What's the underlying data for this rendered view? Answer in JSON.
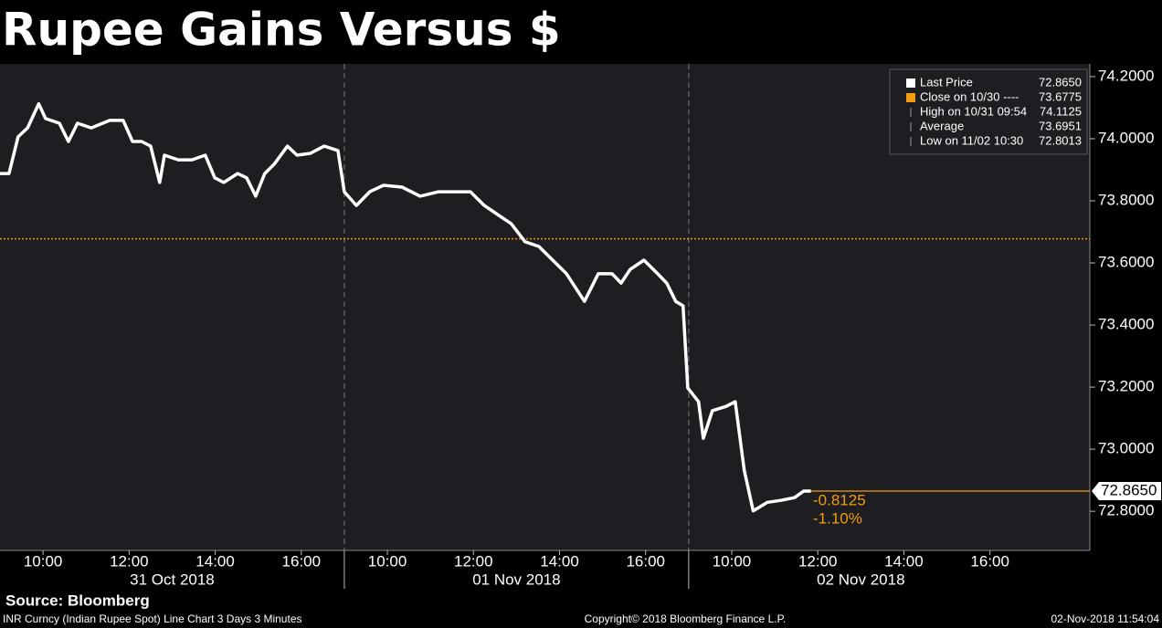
{
  "chart_data": {
    "type": "line",
    "title": "Rupee Gains Versus $",
    "source": "Source: Bloomberg",
    "footer_left": "INR Curncy (Indian Rupee Spot) Line Chart 3 Days 3 Minutes",
    "footer_center": "Copyright© 2018 Bloomberg Finance L.P.",
    "footer_right": "02-Nov-2018 11:54:04",
    "x": [
      0,
      0.21,
      0.42,
      0.64,
      0.9,
      1.06,
      1.38,
      1.59,
      1.8,
      2.12,
      2.55,
      2.86,
      3.08,
      3.29,
      3.5,
      3.71,
      3.82,
      4.14,
      4.46,
      4.77,
      4.99,
      5.2,
      5.52,
      5.73,
      5.94,
      6.15,
      6.37,
      6.68,
      6.9,
      7.21,
      7.53,
      7.85,
      8.0,
      8.28,
      8.59,
      8.91,
      9.34,
      9.76,
      10.19,
      10.61,
      10.93,
      11.25,
      11.56,
      11.88,
      12.2,
      12.52,
      12.84,
      13.16,
      13.58,
      13.9,
      14.22,
      14.43,
      14.64,
      14.96,
      15.28,
      15.49,
      15.7,
      15.87,
      15.98,
      16.23,
      16.34,
      16.55,
      16.87,
      17.08,
      17.29,
      17.5,
      17.83,
      18.14,
      18.46,
      18.67,
      18.84
    ],
    "series": [
      {
        "name": "Last Price",
        "color": "#ffffff",
        "values": [
          73.888,
          73.888,
          74.006,
          74.035,
          74.1125,
          74.065,
          74.05,
          73.991,
          74.05,
          74.035,
          74.059,
          74.059,
          73.991,
          73.991,
          73.976,
          73.859,
          73.947,
          73.932,
          73.932,
          73.947,
          73.874,
          73.859,
          73.888,
          73.874,
          73.815,
          73.888,
          73.918,
          73.976,
          73.947,
          73.953,
          73.976,
          73.962,
          73.829,
          73.785,
          73.829,
          73.85,
          73.844,
          73.815,
          73.829,
          73.829,
          73.829,
          73.785,
          73.756,
          73.726,
          73.668,
          73.653,
          73.609,
          73.565,
          73.476,
          73.565,
          73.565,
          73.535,
          73.579,
          73.609,
          73.565,
          73.535,
          73.476,
          73.462,
          73.197,
          73.153,
          73.035,
          73.124,
          73.138,
          73.153,
          72.932,
          72.8013,
          72.829,
          72.835,
          72.844,
          72.865,
          72.865
        ]
      }
    ],
    "close_line": {
      "name": "Close on 10/30",
      "color": "#f39c12",
      "value": 73.6775
    },
    "legend": [
      {
        "name": "Last Price",
        "value": {
          "value": 72.865,
          "label": "72.8650"
        }
      },
      {
        "name": "Close on 10/30 ----",
        "value": {
          "value": 73.6775,
          "label": "73.6775"
        }
      },
      {
        "name": "High on 10/31 09:54",
        "value": {
          "value": 74.1125,
          "label": "74.1125"
        }
      },
      {
        "name": "Average",
        "value": {
          "value": 73.6951,
          "label": "73.6951"
        }
      },
      {
        "name": "Low on 11/02 10:30",
        "value": {
          "value": 72.8013,
          "label": "72.8013"
        }
      }
    ],
    "change": -0.8125,
    "change_pct": {
      "value": -1.1,
      "label": "-1.10%"
    },
    "xlim": [
      0,
      25.32
    ],
    "xticks": [
      {
        "value": 1,
        "label": "10:00"
      },
      {
        "value": 3,
        "label": "12:00"
      },
      {
        "value": 5,
        "label": "14:00"
      },
      {
        "value": 7,
        "label": "16:00"
      },
      {
        "value": 9,
        "label": "10:00"
      },
      {
        "value": 11,
        "label": "12:00"
      },
      {
        "value": 13,
        "label": "14:00"
      },
      {
        "value": 15,
        "label": "16:00"
      },
      {
        "value": 17,
        "label": "10:00"
      },
      {
        "value": 19,
        "label": "12:00"
      },
      {
        "value": 21,
        "label": "14:00"
      },
      {
        "value": 23,
        "label": "16:00"
      }
    ],
    "day_labels": [
      {
        "value": 4,
        "label": "31 Oct 2018"
      },
      {
        "value": 12,
        "label": "01 Nov 2018"
      },
      {
        "value": 20,
        "label": "02 Nov 2018"
      }
    ],
    "day_breaks": [
      8,
      16
    ],
    "ylim": [
      72.674,
      74.241
    ],
    "yticks": [
      {
        "value": 72.8,
        "label": "72.8000"
      },
      {
        "value": 73.0,
        "label": "73.0000"
      },
      {
        "value": 73.2,
        "label": "73.2000"
      },
      {
        "value": 73.4,
        "label": "73.4000"
      },
      {
        "value": 73.6,
        "label": "73.6000"
      },
      {
        "value": 73.8,
        "label": "73.8000"
      },
      {
        "value": 74.0,
        "label": "74.0000"
      },
      {
        "value": 74.2,
        "label": "74.2000"
      }
    ]
  }
}
